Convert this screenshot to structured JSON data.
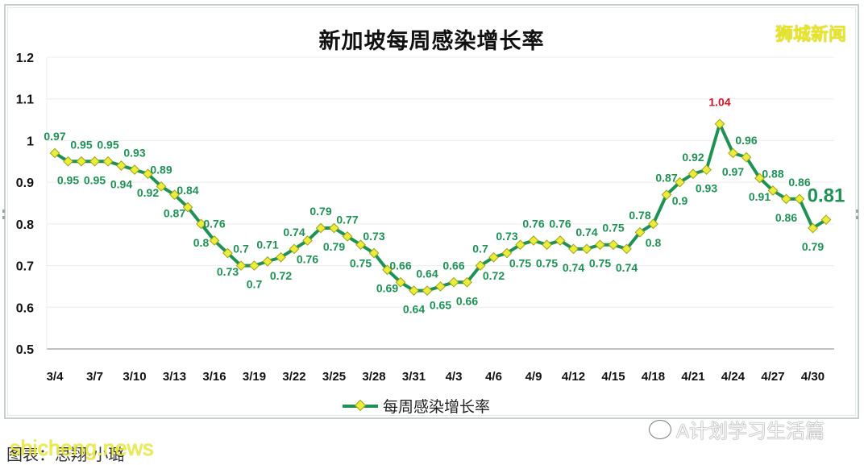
{
  "header": {
    "title": "新加坡每周感染增长率",
    "brand": "狮城新闻"
  },
  "legend": {
    "label": "每周感染增长率"
  },
  "footer": {
    "caption": "图表：思翔·小璐",
    "site_watermark": "shicheng.news",
    "wechat_watermark": "A计划学习生活篇"
  },
  "colors": {
    "line": "#1f9155",
    "marker_fill": "#ecec3a",
    "marker_stroke": "#9aa31c",
    "label": "#1f9155",
    "peak_label": "#d0142c",
    "grid": "#ececec"
  },
  "chart_data": {
    "type": "line",
    "title": "新加坡每周感染增长率",
    "xlabel": "",
    "ylabel": "",
    "ylim": [
      0.5,
      1.2
    ],
    "yticks": [
      0.5,
      0.6,
      0.7,
      0.8,
      0.9,
      1,
      1.1,
      1.2
    ],
    "grid": true,
    "legend_position": "bottom",
    "x_tick_labels": [
      "3/4",
      "3/7",
      "3/10",
      "3/13",
      "3/16",
      "3/19",
      "3/22",
      "3/25",
      "3/28",
      "3/31",
      "4/3",
      "4/6",
      "4/9",
      "4/12",
      "4/15",
      "4/18",
      "4/21",
      "4/24",
      "4/27",
      "4/30"
    ],
    "x": [
      "3/4",
      "3/5",
      "3/6",
      "3/7",
      "3/8",
      "3/9",
      "3/10",
      "3/11",
      "3/12",
      "3/13",
      "3/14",
      "3/15",
      "3/16",
      "3/17",
      "3/18",
      "3/19",
      "3/20",
      "3/21",
      "3/22",
      "3/23",
      "3/24",
      "3/25",
      "3/26",
      "3/27",
      "3/28",
      "3/29",
      "3/30",
      "3/31",
      "4/1",
      "4/2",
      "4/3",
      "4/4",
      "4/5",
      "4/6",
      "4/7",
      "4/8",
      "4/9",
      "4/10",
      "4/11",
      "4/12",
      "4/13",
      "4/14",
      "4/15",
      "4/16",
      "4/17",
      "4/18",
      "4/19",
      "4/20",
      "4/21",
      "4/22",
      "4/23",
      "4/24",
      "4/25",
      "4/26",
      "4/27",
      "4/28",
      "4/29",
      "4/30",
      "5/1"
    ],
    "series": [
      {
        "name": "每周感染增长率",
        "values": [
          0.97,
          0.95,
          0.95,
          0.95,
          0.95,
          0.94,
          0.93,
          0.92,
          0.89,
          0.87,
          0.84,
          0.8,
          0.76,
          0.73,
          0.7,
          0.7,
          0.71,
          0.72,
          0.74,
          0.76,
          0.79,
          0.79,
          0.77,
          0.75,
          0.73,
          0.69,
          0.66,
          0.64,
          0.64,
          0.65,
          0.66,
          0.66,
          0.7,
          0.72,
          0.73,
          0.75,
          0.76,
          0.75,
          0.76,
          0.74,
          0.74,
          0.75,
          0.75,
          0.74,
          0.78,
          0.8,
          0.87,
          0.9,
          0.92,
          0.93,
          1.04,
          0.97,
          0.96,
          0.91,
          0.88,
          0.86,
          0.86,
          0.79,
          0.81
        ]
      }
    ],
    "annotations": [
      {
        "x": "4/23",
        "text": "1.04",
        "color": "#d0142c",
        "note": "peak"
      },
      {
        "x": "5/1",
        "text": "0.81",
        "emphasis": "large bold"
      }
    ]
  }
}
